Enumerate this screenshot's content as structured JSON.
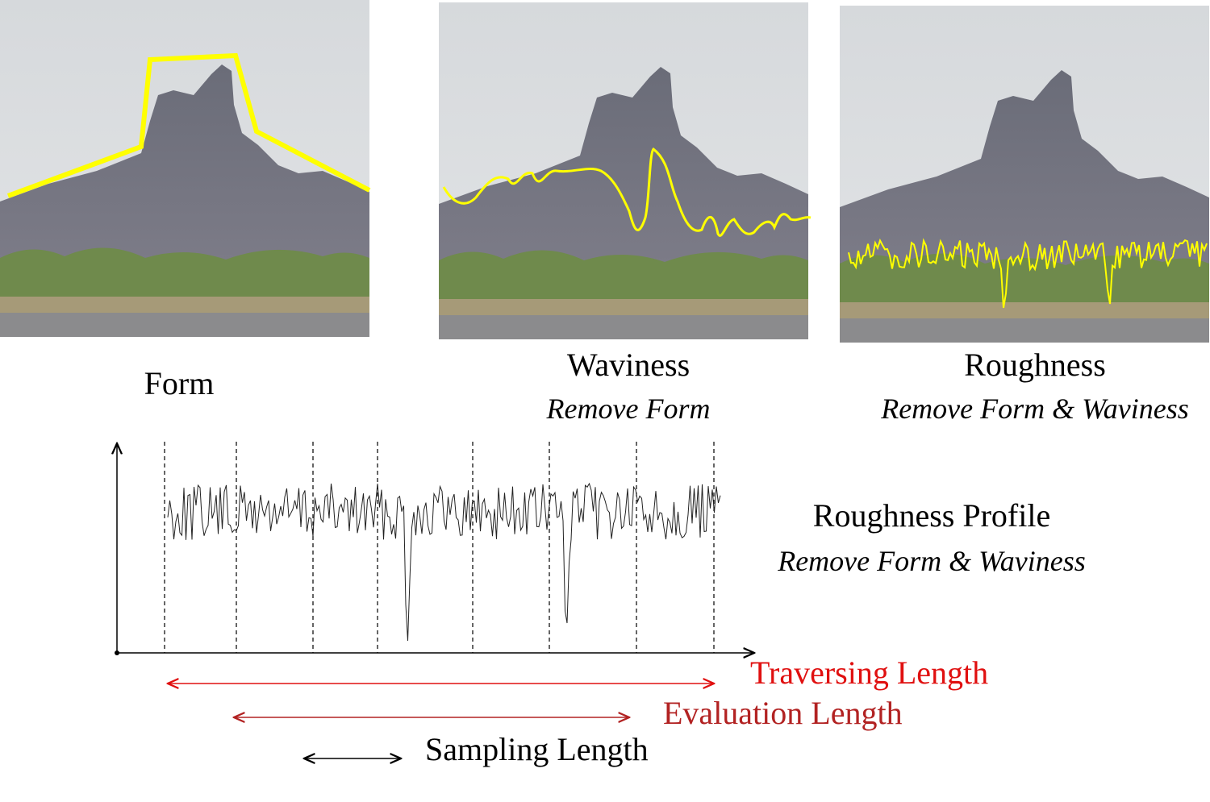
{
  "panels": [
    {
      "label": "Form"
    },
    {
      "label": "Waviness",
      "subtitle": "Remove Form"
    },
    {
      "label": "Roughness",
      "subtitle": "Remove Form & Waviness"
    }
  ],
  "profile": {
    "title": "Roughness Profile",
    "subtitle": "Remove Form & Waviness"
  },
  "lengths": [
    "Traversing Length",
    "Evaluation Length",
    "Sampling Length"
  ]
}
